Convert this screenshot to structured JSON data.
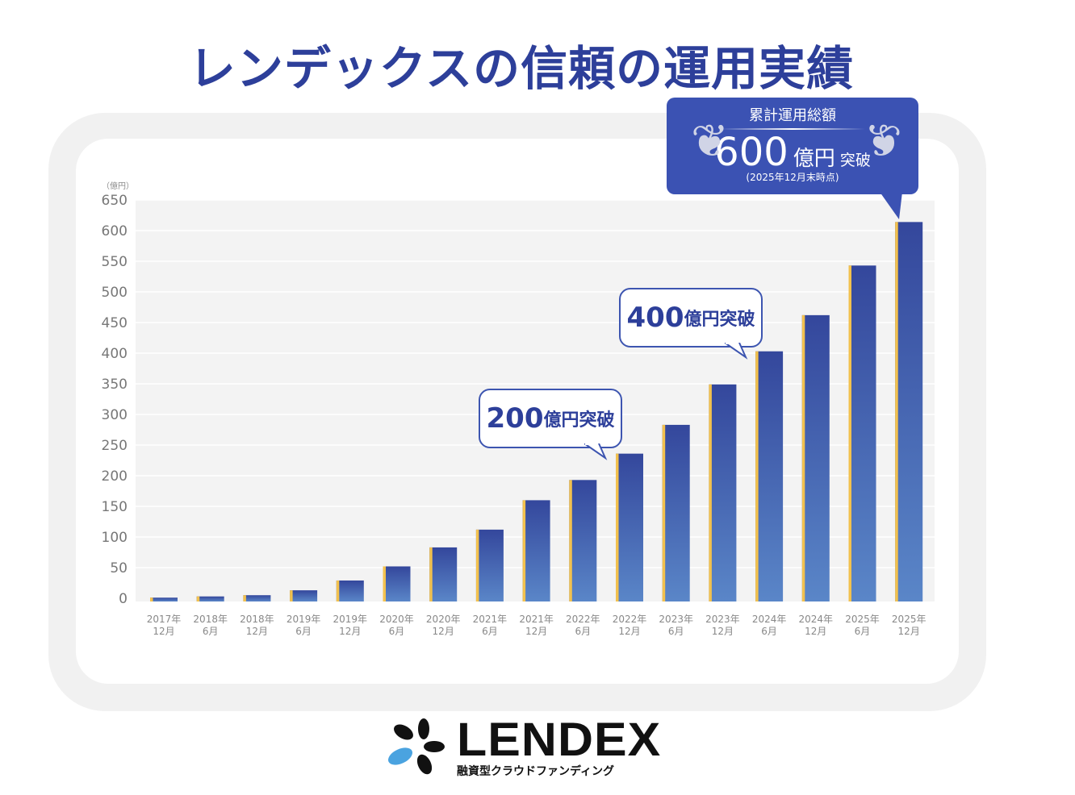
{
  "title": "レンデックスの信頼の運用実績",
  "chart_data": {
    "type": "bar",
    "title": "レンデックスの信頼の運用実績",
    "ylabel": "（億円）",
    "xlabel": "",
    "ylim": [
      0,
      650
    ],
    "yticks": [
      0,
      50,
      100,
      150,
      200,
      250,
      300,
      350,
      400,
      450,
      500,
      550,
      600,
      650
    ],
    "grid": true,
    "categories": [
      [
        "2017年",
        "12月"
      ],
      [
        "2018年",
        "6月"
      ],
      [
        "2018年",
        "12月"
      ],
      [
        "2019年",
        "6月"
      ],
      [
        "2019年",
        "12月"
      ],
      [
        "2020年",
        "6月"
      ],
      [
        "2020年",
        "12月"
      ],
      [
        "2021年",
        "6月"
      ],
      [
        "2021年",
        "12月"
      ],
      [
        "2022年",
        "6月"
      ],
      [
        "2022年",
        "12月"
      ],
      [
        "2023年",
        "6月"
      ],
      [
        "2023年",
        "12月"
      ],
      [
        "2024年",
        "6月"
      ],
      [
        "2024年",
        "12月"
      ],
      [
        "2025年",
        "6月"
      ],
      [
        "2025年",
        "12月"
      ]
    ],
    "values": [
      1,
      3,
      5,
      13,
      29,
      52,
      83,
      112,
      160,
      193,
      236,
      283,
      349,
      403,
      462,
      543,
      614
    ],
    "colors": {
      "bar_top": "#34479c",
      "bar_bottom": "#5a86c8",
      "accent": "#f2c14e"
    },
    "annotations": [
      {
        "num": "200",
        "unit": "億円突破"
      },
      {
        "num": "400",
        "unit": "億円突破"
      }
    ]
  },
  "callout": {
    "label": "累計運用総額",
    "value": "600",
    "unit": "億円",
    "suffix": "突破",
    "note": "(2025年12月末時点)"
  },
  "logo": {
    "name": "LENDEX",
    "tagline": "融資型クラウドファンディング"
  }
}
